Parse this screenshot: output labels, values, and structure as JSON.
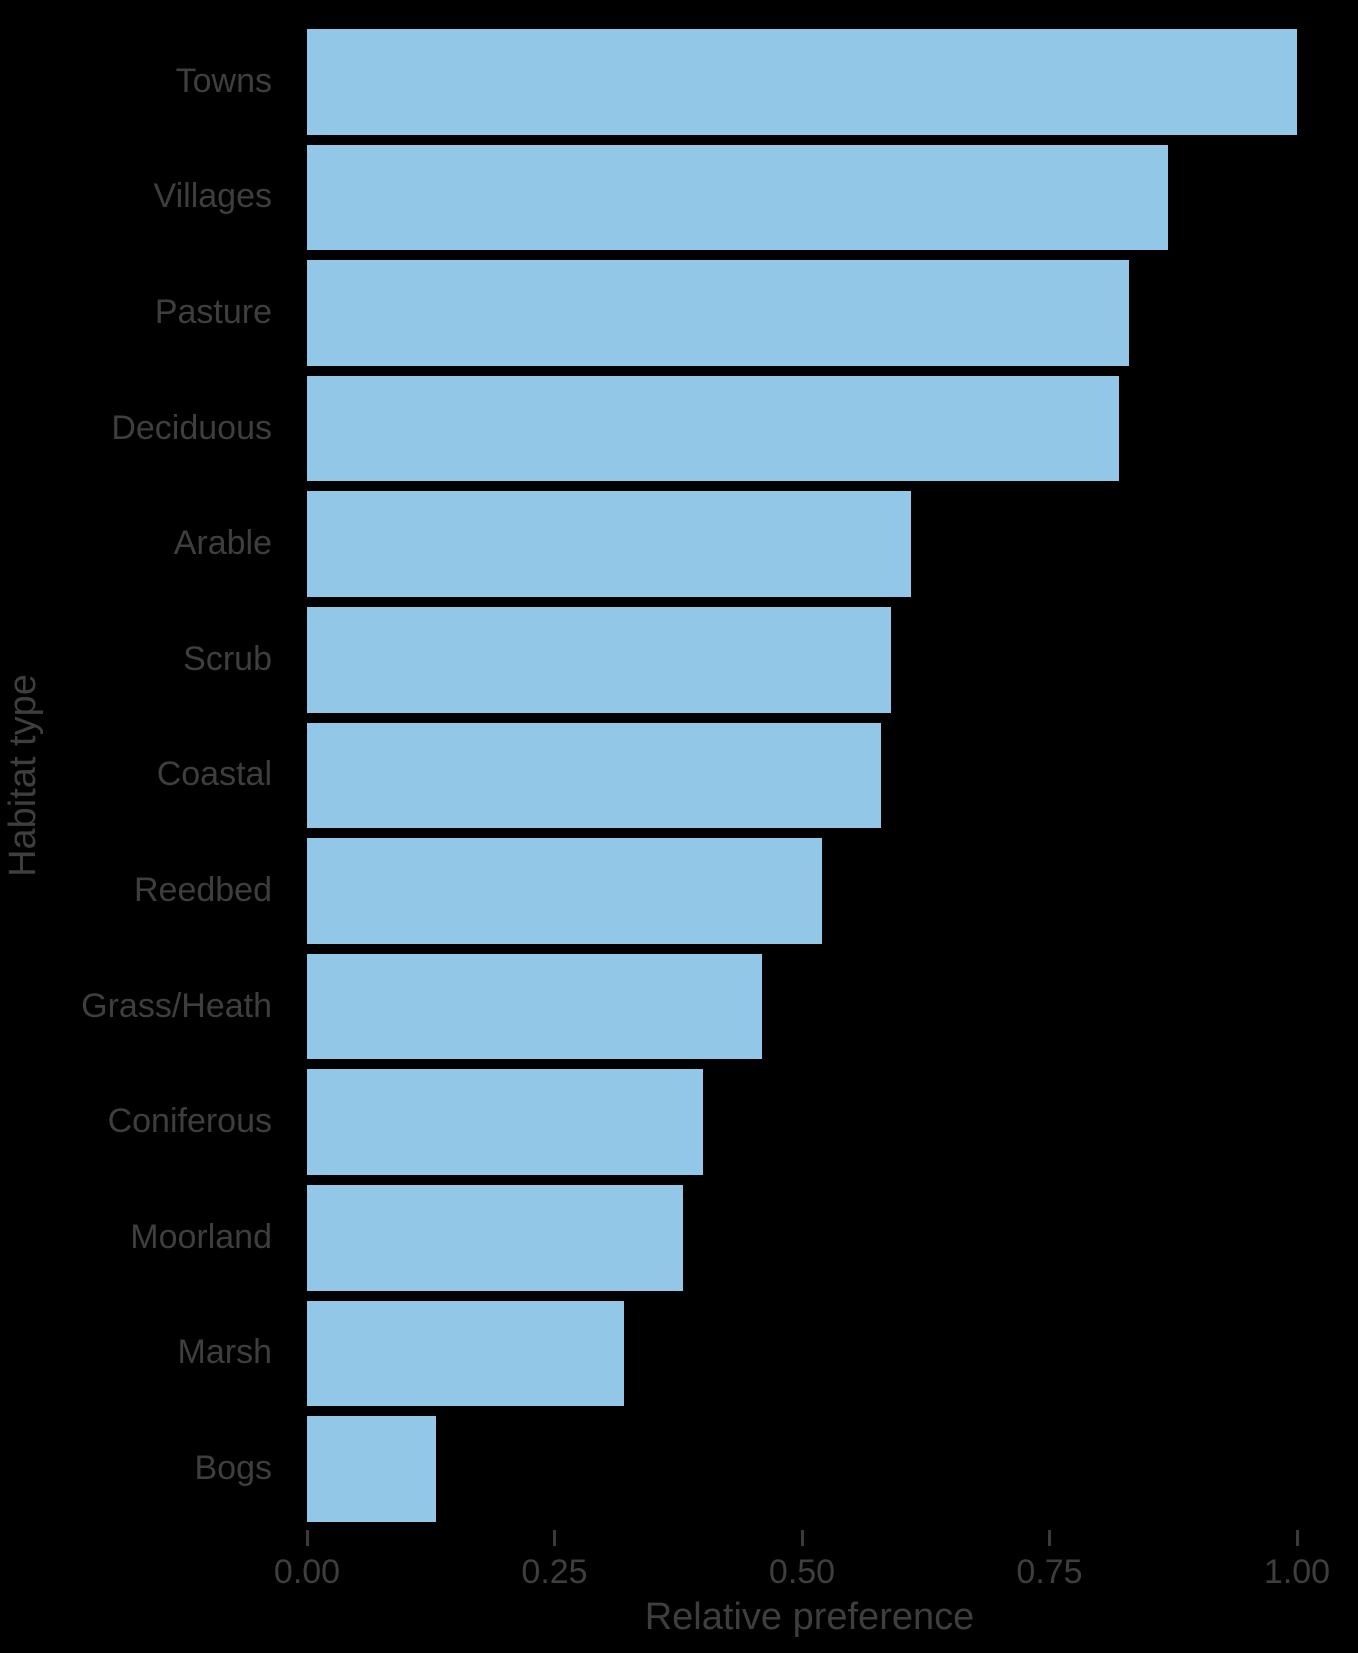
{
  "chart_data": {
    "type": "bar",
    "orientation": "horizontal",
    "title": "",
    "xlabel": "Relative preference",
    "ylabel": "Habitat type",
    "categories": [
      "Towns",
      "Villages",
      "Pasture",
      "Deciduous",
      "Arable",
      "Scrub",
      "Coastal",
      "Reedbed",
      "Grass/Heath",
      "Coniferous",
      "Moorland",
      "Marsh",
      "Bogs"
    ],
    "values": [
      1.0,
      0.87,
      0.83,
      0.82,
      0.61,
      0.59,
      0.58,
      0.52,
      0.46,
      0.4,
      0.38,
      0.32,
      0.13
    ],
    "xlim": [
      0,
      1.0
    ],
    "xticks": [
      0,
      0.25,
      0.5,
      0.75,
      1.0
    ],
    "xtick_labels": [
      "0.00",
      "0.25",
      "0.50",
      "0.75",
      "1.00"
    ],
    "grid": false,
    "legend": false,
    "colors": {
      "bar_fill": "#93c7e8",
      "text": "#3e3e3e",
      "tick": "#3a3a3a",
      "background": "#000000"
    }
  }
}
